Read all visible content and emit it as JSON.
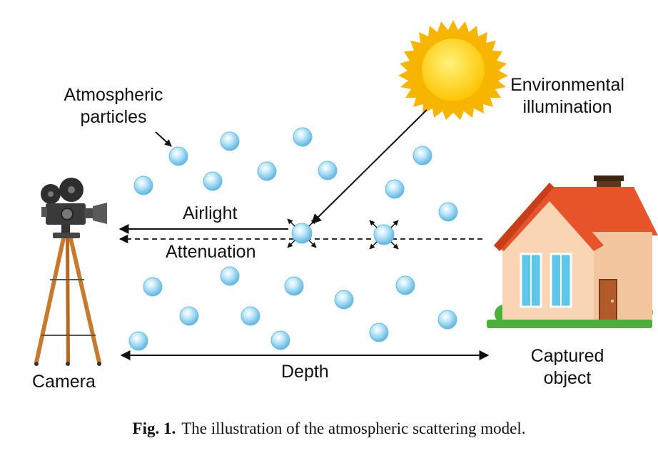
{
  "labels": {
    "particles": "Atmospheric\nparticles",
    "environmental": "Environmental\nillumination",
    "airlight": "Airlight",
    "attenuation": "Attenuation",
    "camera": "Camera",
    "depth": "Depth",
    "captured": "Captured\nobject"
  },
  "caption": {
    "number": "Fig. 1.",
    "text": "The illustration of the atmospheric scattering model."
  },
  "colors": {
    "sun_core": "#ffd21a",
    "sun_rays": "#f7b500",
    "particle": "#8ed0ee",
    "roof": "#e8542a",
    "wall": "#fad5b4",
    "window": "#5ec6e9",
    "grass": "#4caf3c",
    "tripod_wood": "#c77a2e"
  },
  "icons": [
    "sun-icon",
    "camera-icon",
    "house-icon",
    "particle-icon"
  ]
}
